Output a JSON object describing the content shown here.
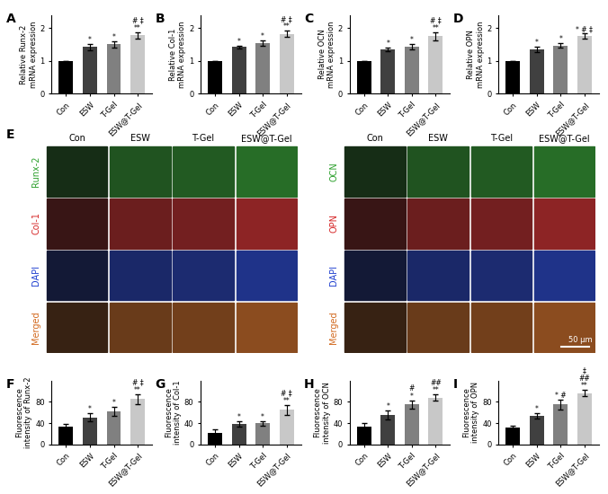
{
  "chart_data": [
    {
      "type": "bar",
      "panel": "A",
      "ylabel": "Relative Runx-2\nmRNA expression",
      "categories": [
        "Con",
        "ESW",
        "T-Gel",
        "ESW@T-Gel"
      ],
      "values": [
        1,
        1.42,
        1.5,
        1.78
      ],
      "errors": [
        0,
        0.1,
        0.1,
        0.09
      ],
      "significance": [
        null,
        "*",
        "*",
        "# ‡\n**"
      ],
      "colors": [
        "#000000",
        "#404040",
        "#808080",
        "#c8c8c8"
      ],
      "ylim": [
        0,
        2.4
      ],
      "yticks": [
        0,
        1,
        2
      ]
    },
    {
      "type": "bar",
      "panel": "B",
      "ylabel": "Relative Col-1\nmRNA expression",
      "categories": [
        "Con",
        "ESW",
        "T-Gel",
        "ESW@T-Gel"
      ],
      "values": [
        1,
        1.42,
        1.55,
        1.82
      ],
      "errors": [
        0,
        0.05,
        0.08,
        0.1
      ],
      "significance": [
        null,
        "*",
        "*",
        "# ‡\n**"
      ],
      "colors": [
        "#000000",
        "#404040",
        "#808080",
        "#c8c8c8"
      ],
      "ylim": [
        0,
        2.4
      ],
      "yticks": [
        0,
        1,
        2
      ]
    },
    {
      "type": "bar",
      "panel": "C",
      "ylabel": "Relative OCN\nmRNA expression",
      "categories": [
        "Con",
        "ESW",
        "T-Gel",
        "ESW@T-Gel"
      ],
      "values": [
        1,
        1.35,
        1.42,
        1.75
      ],
      "errors": [
        0,
        0.05,
        0.08,
        0.12
      ],
      "significance": [
        null,
        "*",
        "*",
        "# ‡\n**"
      ],
      "colors": [
        "#000000",
        "#404040",
        "#808080",
        "#c8c8c8"
      ],
      "ylim": [
        0,
        2.4
      ],
      "yticks": [
        0,
        1,
        2
      ]
    },
    {
      "type": "bar",
      "panel": "D",
      "ylabel": "Relative OPN\nmRNA expression",
      "categories": [
        "Con",
        "ESW",
        "T-Gel",
        "ESW@T-Gel"
      ],
      "values": [
        1,
        1.35,
        1.47,
        1.75
      ],
      "errors": [
        0,
        0.08,
        0.07,
        0.08
      ],
      "significance": [
        null,
        "*",
        "*",
        "* # ‡"
      ],
      "colors": [
        "#000000",
        "#404040",
        "#808080",
        "#c8c8c8"
      ],
      "ylim": [
        0,
        2.4
      ],
      "yticks": [
        0,
        1,
        2
      ]
    },
    {
      "type": "bar",
      "panel": "F",
      "ylabel": "Fluorescence\nintensity of Runx-2",
      "categories": [
        "Con",
        "ESW",
        "T-Gel",
        "ESW@T-Gel"
      ],
      "values": [
        33,
        51,
        62,
        85
      ],
      "errors": [
        6,
        7,
        8,
        9
      ],
      "significance": [
        null,
        "*",
        "*",
        "# ‡\n**"
      ],
      "colors": [
        "#000000",
        "#404040",
        "#808080",
        "#c8c8c8"
      ],
      "ylim": [
        0,
        120
      ],
      "yticks": [
        0,
        40,
        80
      ]
    },
    {
      "type": "bar",
      "panel": "G",
      "ylabel": "Fluorescence\nintensity of Col-1",
      "categories": [
        "Con",
        "ESW",
        "T-Gel",
        "ESW@T-Gel"
      ],
      "values": [
        22,
        38,
        40,
        65
      ],
      "errors": [
        7,
        5,
        4,
        9
      ],
      "significance": [
        null,
        "*",
        "*",
        "# ‡\n**"
      ],
      "colors": [
        "#000000",
        "#404040",
        "#808080",
        "#c8c8c8"
      ],
      "ylim": [
        0,
        120
      ],
      "yticks": [
        0,
        40,
        80
      ]
    },
    {
      "type": "bar",
      "panel": "H",
      "ylabel": "Fluorescence\nintensity of OCN",
      "categories": [
        "Con",
        "ESW",
        "T-Gel",
        "ESW@T-Gel"
      ],
      "values": [
        33,
        55,
        75,
        88
      ],
      "errors": [
        8,
        8,
        8,
        6
      ],
      "significance": [
        null,
        "*",
        "#\n*",
        "##\n**"
      ],
      "colors": [
        "#000000",
        "#404040",
        "#808080",
        "#c8c8c8"
      ],
      "ylim": [
        0,
        120
      ],
      "yticks": [
        0,
        40,
        80
      ]
    },
    {
      "type": "bar",
      "panel": "I",
      "ylabel": "Fluorescence\nintensity of OPN",
      "categories": [
        "Con",
        "ESW",
        "T-Gel",
        "ESW@T-Gel"
      ],
      "values": [
        32,
        53,
        75,
        96
      ],
      "errors": [
        3,
        5,
        9,
        6
      ],
      "significance": [
        null,
        "*",
        "* #",
        "‡\n##\n**"
      ],
      "colors": [
        "#000000",
        "#404040",
        "#808080",
        "#c8c8c8"
      ],
      "ylim": [
        0,
        120
      ],
      "yticks": [
        0,
        40,
        80
      ]
    }
  ],
  "image_panel": {
    "panel": "E",
    "columns": [
      "Con",
      "ESW",
      "T-Gel",
      "ESW@T-Gel"
    ],
    "grids": [
      {
        "rows": [
          {
            "label": "Runx-2",
            "color": "#2ca02c"
          },
          {
            "label": "Col-1",
            "color": "#d62728"
          },
          {
            "label": "DAPI",
            "color": "#1f3fcf"
          },
          {
            "label": "Merged",
            "color": "#d2691e"
          }
        ]
      },
      {
        "rows": [
          {
            "label": "OCN",
            "color": "#2ca02c"
          },
          {
            "label": "OPN",
            "color": "#d62728"
          },
          {
            "label": "DAPI",
            "color": "#1f3fcf"
          },
          {
            "label": "Merged",
            "color": "#d2691e"
          }
        ]
      }
    ],
    "scale_bar": "50 μm"
  }
}
